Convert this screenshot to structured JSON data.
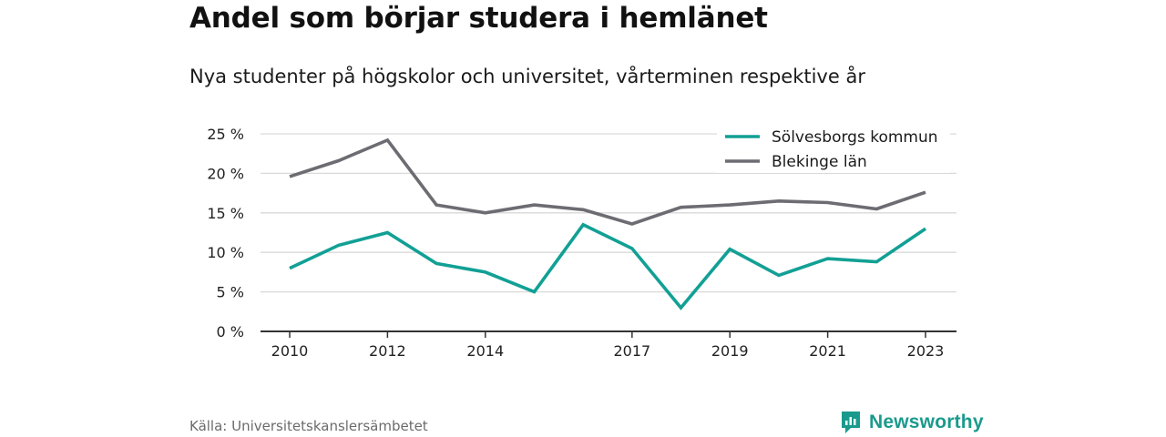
{
  "title": "Andel som börjar studera i hemlänet",
  "subtitle": "Nya studenter på högskolor och universitet, vårterminen respektive år",
  "source": "Källa: Universitetskanslersämbetet",
  "brand": "Newsworthy",
  "colors": {
    "accent": "#1a9a8c",
    "series_teal": "#12a095",
    "series_gray": "#6c6c72",
    "grid": "#d9d9d9",
    "axis": "#333333"
  },
  "chart_data": {
    "type": "line",
    "x": [
      2010,
      2011,
      2012,
      2013,
      2014,
      2015,
      2016,
      2017,
      2018,
      2019,
      2020,
      2021,
      2022,
      2023
    ],
    "x_tick_labels": [
      "2010",
      "2012",
      "2014",
      "2017",
      "2019",
      "2021",
      "2023"
    ],
    "y_tick_labels": [
      "0 %",
      "5 %",
      "10 %",
      "15 %",
      "20 %",
      "25 %"
    ],
    "ylim": [
      0,
      25
    ],
    "grid": true,
    "legend_position": "top-right",
    "series": [
      {
        "name": "Sölvesborgs kommun",
        "color": "#12a095",
        "values": [
          8.0,
          10.9,
          12.5,
          8.6,
          7.5,
          5.0,
          13.5,
          10.5,
          3.0,
          10.4,
          7.1,
          9.2,
          8.8,
          13.0
        ]
      },
      {
        "name": "Blekinge län",
        "color": "#6c6c72",
        "values": [
          19.6,
          21.6,
          24.2,
          16.0,
          15.0,
          16.0,
          15.4,
          13.6,
          15.7,
          16.0,
          16.5,
          16.3,
          15.5,
          17.6
        ]
      }
    ]
  }
}
